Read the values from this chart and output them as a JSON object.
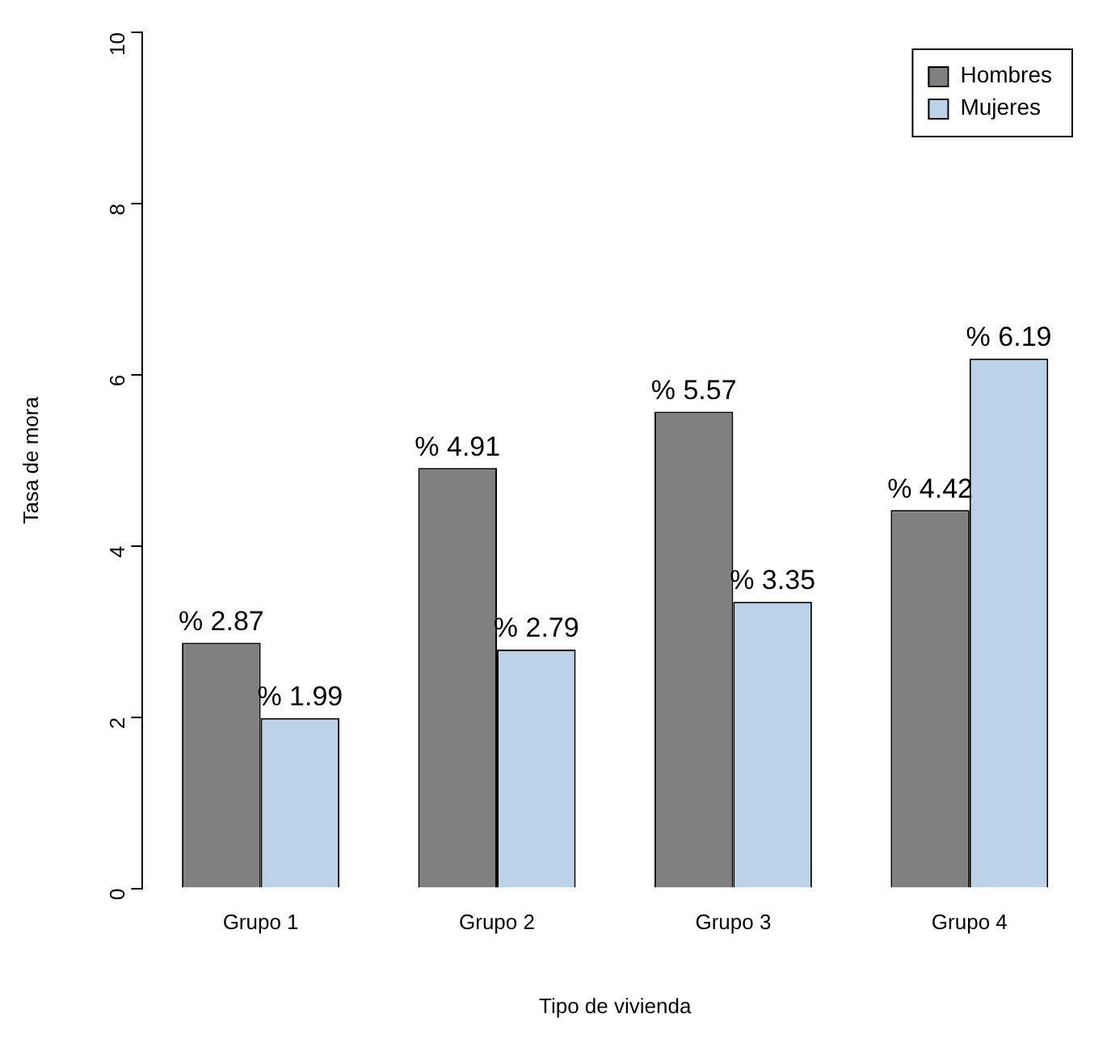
{
  "chart_data": {
    "type": "bar",
    "xlabel": "Tipo de vivienda",
    "ylabel": "Tasa de mora",
    "categories": [
      "Grupo 1",
      "Grupo 2",
      "Grupo 3",
      "Grupo 4"
    ],
    "series": [
      {
        "name": "Hombres",
        "color": "#808080",
        "values": [
          2.87,
          4.91,
          5.57,
          4.42
        ],
        "value_labels": [
          "% 2.87",
          "% 4.91",
          "% 5.57",
          "% 4.42"
        ]
      },
      {
        "name": "Mujeres",
        "color": "#bcd2e8",
        "values": [
          1.99,
          2.79,
          3.35,
          6.19
        ],
        "value_labels": [
          "% 1.99",
          "% 2.79",
          "% 3.35",
          "% 6.19"
        ]
      }
    ],
    "ylim": [
      0,
      10
    ],
    "yticks": [
      0,
      2,
      4,
      6,
      8,
      10
    ],
    "grid": false,
    "legend": "top right"
  }
}
